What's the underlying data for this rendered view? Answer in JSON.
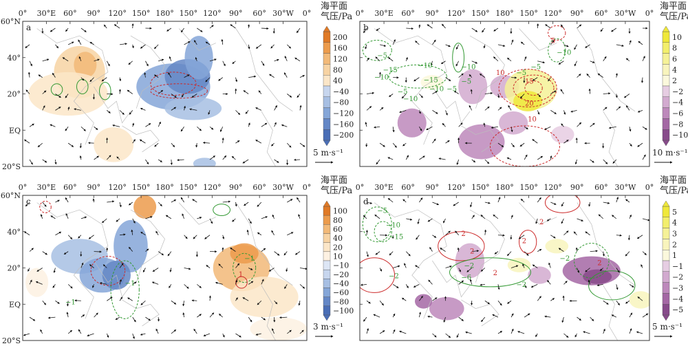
{
  "lon_labels": [
    "0°",
    "30°E",
    "60°",
    "90°",
    "120°",
    "150°",
    "180°",
    "150°",
    "120°",
    "90°",
    "60°",
    "30°W",
    "0°"
  ],
  "lat_labels": [
    "60°N",
    "40°",
    "20°",
    "EQ",
    "20°S"
  ],
  "panels": [
    {
      "id": "a",
      "tag": "a",
      "legend": {
        "title_line1": "海平面",
        "title_line2": "气压/Pa",
        "ticks": [
          "200",
          "160",
          "120",
          "80",
          "40",
          "−40",
          "−80",
          "−120",
          "−160",
          "−200"
        ],
        "colors": [
          "#e07a26",
          "#ec9b4c",
          "#f2b978",
          "#f7d3a3",
          "#fbe6c8",
          "#c7d6ee",
          "#a7bfe3",
          "#85a6d8",
          "#6487c6",
          "#4a6eb6"
        ],
        "vector_ref": "5 m·s⁻¹"
      },
      "contour_labels": []
    },
    {
      "id": "b",
      "tag": "b",
      "legend": {
        "title_line1": "海平面",
        "title_line2": "气压/Pa",
        "ticks": [
          "10",
          "8",
          "6",
          "4",
          "2",
          "−2",
          "−4",
          "−6",
          "−8",
          "−10"
        ],
        "colors": [
          "#efe83a",
          "#f2ee6c",
          "#f5f197",
          "#f8f4bd",
          "#fbf8dc",
          "#e6cde2",
          "#d2aacf",
          "#bd88bb",
          "#a467a4",
          "#874a8a"
        ],
        "vector_ref": "10 m·s⁻¹"
      },
      "contour_labels": [
        "−5",
        "−15",
        "−10",
        "−10",
        "−5",
        "−15",
        "−10",
        "−5",
        "−10",
        "10",
        "−5",
        "15",
        "20",
        "10",
        "−5",
        "−10",
        "−5",
        "−10",
        "5"
      ]
    },
    {
      "id": "c",
      "tag": "c",
      "legend": {
        "title_line1": "海平面",
        "title_line2": "气压/Pa",
        "ticks": [
          "100",
          "80",
          "60",
          "40",
          "20",
          "10",
          "−10",
          "−20",
          "−40",
          "−60",
          "−80",
          "−100"
        ],
        "colors": [
          "#e07a26",
          "#ec9b4c",
          "#f2b978",
          "#f7d3a3",
          "#fbe6c8",
          "#fdf1e2",
          "#dde6f5",
          "#c7d6ee",
          "#a7bfe3",
          "#85a6d8",
          "#6487c6",
          "#4a6eb6"
        ],
        "vector_ref": "3 m·s⁻¹"
      },
      "contour_labels": [
        "−1",
        "−1",
        "1",
        "−1"
      ]
    },
    {
      "id": "d",
      "tag": "d",
      "legend": {
        "title_line1": "海平面",
        "title_line2": "气压/Pa",
        "ticks": [
          "5",
          "4",
          "3",
          "2",
          "1",
          "−1",
          "−2",
          "−3",
          "−4",
          "−5"
        ],
        "colors": [
          "#efe83a",
          "#f2ee6c",
          "#f5f197",
          "#f8f4bd",
          "#fbf8dc",
          "#e6cde2",
          "#d2aacf",
          "#bd88bb",
          "#a467a4",
          "#874a8a"
        ],
        "vector_ref": "5 m·s⁻¹"
      },
      "contour_labels": [
        "−5",
        "−10",
        "−15",
        "2",
        "−2",
        "2",
        "2",
        "−2",
        "−6",
        "2",
        "−2",
        "−2",
        "2",
        "2"
      ]
    }
  ]
}
